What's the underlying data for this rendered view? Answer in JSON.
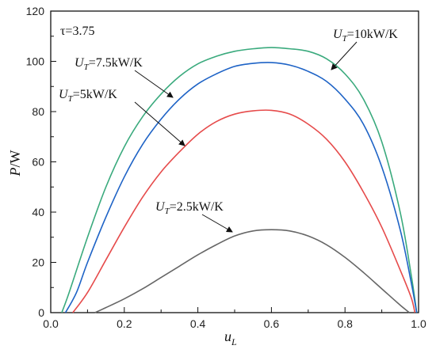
{
  "chart_data": {
    "type": "line",
    "xlabel": "u",
    "xlabel_sub": "L",
    "ylabel": "P",
    "ylabel_unit": "/W",
    "xlim": [
      0.0,
      1.0
    ],
    "ylim": [
      0,
      120
    ],
    "x_ticks": [
      "0.0",
      "0.2",
      "0.4",
      "0.6",
      "0.8",
      "1.0"
    ],
    "y_ticks": [
      "0",
      "20",
      "40",
      "60",
      "80",
      "100",
      "120"
    ],
    "grid": false,
    "parameter_label": "τ=3.75",
    "series": [
      {
        "name": "U_T=10kW/K",
        "label_prefix": "U",
        "label_sub": "T",
        "label_suffix": "=10kW/K",
        "color": "#3aaa7d",
        "points": [
          [
            0.03,
            0
          ],
          [
            0.05,
            8
          ],
          [
            0.1,
            30
          ],
          [
            0.15,
            50
          ],
          [
            0.2,
            66
          ],
          [
            0.25,
            78
          ],
          [
            0.3,
            87
          ],
          [
            0.35,
            94
          ],
          [
            0.4,
            99
          ],
          [
            0.45,
            102
          ],
          [
            0.5,
            104
          ],
          [
            0.55,
            105
          ],
          [
            0.6,
            105.5
          ],
          [
            0.65,
            105
          ],
          [
            0.7,
            104
          ],
          [
            0.75,
            101
          ],
          [
            0.8,
            95
          ],
          [
            0.85,
            85
          ],
          [
            0.9,
            68
          ],
          [
            0.95,
            40
          ],
          [
            0.98,
            15
          ],
          [
            0.995,
            0
          ]
        ]
      },
      {
        "name": "U_T=7.5kW/K",
        "label_prefix": "U",
        "label_sub": "T",
        "label_suffix": "=7.5kW/K",
        "color": "#1e63c6",
        "points": [
          [
            0.04,
            0
          ],
          [
            0.07,
            8
          ],
          [
            0.1,
            20
          ],
          [
            0.15,
            38
          ],
          [
            0.2,
            54
          ],
          [
            0.25,
            67
          ],
          [
            0.3,
            77
          ],
          [
            0.35,
            85
          ],
          [
            0.4,
            91
          ],
          [
            0.45,
            95
          ],
          [
            0.5,
            98
          ],
          [
            0.55,
            99.2
          ],
          [
            0.6,
            99.5
          ],
          [
            0.65,
            98.5
          ],
          [
            0.7,
            96
          ],
          [
            0.75,
            92
          ],
          [
            0.8,
            85
          ],
          [
            0.85,
            75
          ],
          [
            0.9,
            58
          ],
          [
            0.95,
            33
          ],
          [
            0.98,
            12
          ],
          [
            0.995,
            0
          ]
        ]
      },
      {
        "name": "U_T=5kW/K",
        "label_prefix": "U",
        "label_sub": "T",
        "label_suffix": "=5kW/K",
        "color": "#e64b4b",
        "points": [
          [
            0.06,
            0
          ],
          [
            0.1,
            8
          ],
          [
            0.15,
            21
          ],
          [
            0.2,
            34
          ],
          [
            0.25,
            46
          ],
          [
            0.3,
            56
          ],
          [
            0.35,
            64
          ],
          [
            0.4,
            71
          ],
          [
            0.45,
            76
          ],
          [
            0.5,
            79
          ],
          [
            0.55,
            80.3
          ],
          [
            0.6,
            80.5
          ],
          [
            0.65,
            79
          ],
          [
            0.7,
            75
          ],
          [
            0.75,
            69
          ],
          [
            0.8,
            60
          ],
          [
            0.85,
            48
          ],
          [
            0.9,
            34
          ],
          [
            0.95,
            17
          ],
          [
            0.98,
            6
          ],
          [
            0.99,
            0
          ]
        ]
      },
      {
        "name": "U_T=2.5kW/K",
        "label_prefix": "U",
        "label_sub": "T",
        "label_suffix": "=2.5kW/K",
        "color": "#666666",
        "points": [
          [
            0.12,
            0
          ],
          [
            0.15,
            2
          ],
          [
            0.2,
            5.5
          ],
          [
            0.25,
            9.5
          ],
          [
            0.3,
            14
          ],
          [
            0.35,
            18.5
          ],
          [
            0.4,
            23
          ],
          [
            0.45,
            27
          ],
          [
            0.5,
            30.5
          ],
          [
            0.55,
            32.5
          ],
          [
            0.6,
            33
          ],
          [
            0.65,
            32.5
          ],
          [
            0.7,
            30.5
          ],
          [
            0.75,
            27
          ],
          [
            0.8,
            22
          ],
          [
            0.85,
            16
          ],
          [
            0.9,
            9.5
          ],
          [
            0.95,
            3
          ],
          [
            0.975,
            0
          ]
        ]
      }
    ]
  }
}
